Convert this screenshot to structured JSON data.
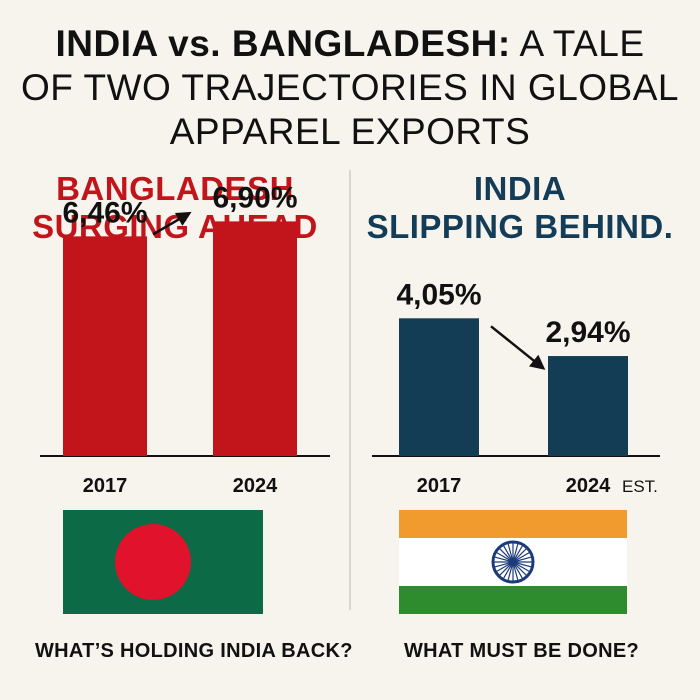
{
  "title": {
    "part1": "INDIA vs. BANGLADESH:",
    "part2": " A TALE",
    "line2": "OF TWO TRAJECTORIES IN GLOBAL",
    "line3": "APPAREL EXPORTS"
  },
  "panels": {
    "bangladesh": {
      "heading_line1": "BANGLADESH",
      "heading_line2": "SURGING AHEAD",
      "question": "WHAT’S HOLDING INDIA BACK?",
      "flag_icon": "bangladesh-flag-icon"
    },
    "india": {
      "heading_line1": "INDIA",
      "heading_line2": "SLIPPING BEHIND.",
      "question": "WHAT MUST BE DONE?",
      "flag_icon": "india-flag-icon"
    }
  },
  "colors": {
    "bangladesh_bar": "#c1151b",
    "india_bar": "#123d55",
    "bangladesh_heading": "#c1151b",
    "india_heading": "#143c57",
    "bd_flag_green": "#0c6a46",
    "bd_flag_red": "#e1122b",
    "in_saffron": "#f19a2e",
    "in_green": "#2e8b2e",
    "in_chakra": "#1b3a7a"
  },
  "chart_data": [
    {
      "type": "bar",
      "categories": [
        "2017",
        "2024"
      ],
      "values": [
        6.46,
        6.9
      ],
      "data_labels": [
        "6,46%",
        "6,90%"
      ],
      "title": "BANGLADESH SURGING AHEAD",
      "trend": "up"
    },
    {
      "type": "bar",
      "categories": [
        "2017",
        "2024"
      ],
      "category_suffix": [
        "",
        "EST."
      ],
      "values": [
        4.05,
        2.94
      ],
      "data_labels": [
        "4,05%",
        "2,94%"
      ],
      "title": "INDIA SLIPPING BEHIND.",
      "trend": "down"
    }
  ]
}
